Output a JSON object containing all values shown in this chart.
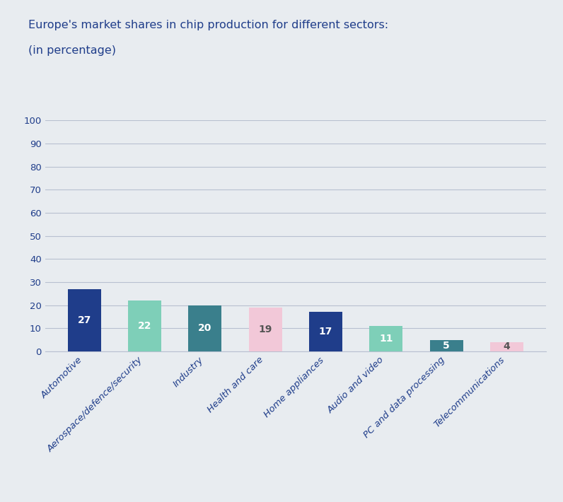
{
  "title_line1": "Europe's market shares in chip production for different sectors:",
  "title_line2": "(in percentage)",
  "categories": [
    "Automotive",
    "Aerospace/defence/security",
    "Industry",
    "Health and care",
    "Home appliances",
    "Audio and video",
    "PC and data processing",
    "Telecommunications"
  ],
  "values": [
    27,
    22,
    20,
    19,
    17,
    11,
    5,
    4
  ],
  "bar_colors": [
    "#1f3d8a",
    "#7ecfb8",
    "#3a7f8c",
    "#f2c8d8",
    "#1f3d8a",
    "#7ecfb8",
    "#3a7f8c",
    "#f2c8d8"
  ],
  "label_colors": [
    "white",
    "white",
    "white",
    "#555555",
    "white",
    "white",
    "white",
    "#555555"
  ],
  "ylim": [
    0,
    100
  ],
  "yticks": [
    0,
    10,
    20,
    30,
    40,
    50,
    60,
    70,
    80,
    90,
    100
  ],
  "background_color": "#e8ecf0",
  "plot_bg_color": "#e8ecf0",
  "title_color": "#1f3d8a",
  "tick_color": "#1f3d8a",
  "grid_color": "#b8c0d0",
  "title_fontsize": 11.5,
  "tick_fontsize": 9.5,
  "bar_label_fontsize": 10,
  "xticklabel_color": "#1f3d8a",
  "bar_width": 0.55
}
